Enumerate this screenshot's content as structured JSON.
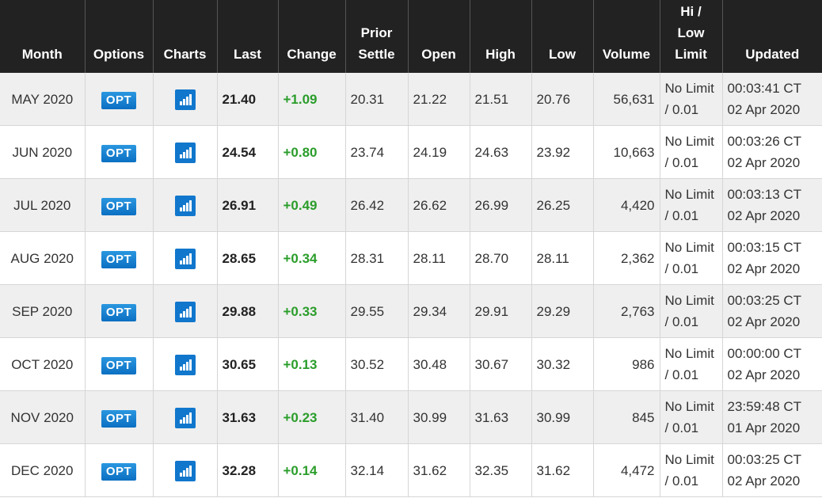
{
  "headers": {
    "month": "Month",
    "options": "Options",
    "charts": "Charts",
    "last": "Last",
    "change": "Change",
    "prior_settle_1": "Prior",
    "prior_settle_2": "Settle",
    "open": "Open",
    "high": "High",
    "low": "Low",
    "volume": "Volume",
    "hilo_1": "Hi /",
    "hilo_2": "Low",
    "hilo_3": "Limit",
    "updated": "Updated"
  },
  "option_label": "OPT",
  "icons": {
    "chart": "bar-chart-icon"
  },
  "colors": {
    "header_bg": "#222222",
    "change_up": "#2a9d2a",
    "opt_blue": "#1177cc"
  },
  "rows": [
    {
      "month": "MAY 2020",
      "last": "21.40",
      "change": "+1.09",
      "prior": "20.31",
      "open": "21.22",
      "high": "21.51",
      "low": "20.76",
      "volume": "56,631",
      "limit1": "No Limit",
      "limit2": "/ 0.01",
      "time": "00:03:41 CT",
      "date": "02 Apr 2020"
    },
    {
      "month": "JUN 2020",
      "last": "24.54",
      "change": "+0.80",
      "prior": "23.74",
      "open": "24.19",
      "high": "24.63",
      "low": "23.92",
      "volume": "10,663",
      "limit1": "No Limit",
      "limit2": "/ 0.01",
      "time": "00:03:26 CT",
      "date": "02 Apr 2020"
    },
    {
      "month": "JUL 2020",
      "last": "26.91",
      "change": "+0.49",
      "prior": "26.42",
      "open": "26.62",
      "high": "26.99",
      "low": "26.25",
      "volume": "4,420",
      "limit1": "No Limit",
      "limit2": "/ 0.01",
      "time": "00:03:13 CT",
      "date": "02 Apr 2020"
    },
    {
      "month": "AUG 2020",
      "last": "28.65",
      "change": "+0.34",
      "prior": "28.31",
      "open": "28.11",
      "high": "28.70",
      "low": "28.11",
      "volume": "2,362",
      "limit1": "No Limit",
      "limit2": "/ 0.01",
      "time": "00:03:15 CT",
      "date": "02 Apr 2020"
    },
    {
      "month": "SEP 2020",
      "last": "29.88",
      "change": "+0.33",
      "prior": "29.55",
      "open": "29.34",
      "high": "29.91",
      "low": "29.29",
      "volume": "2,763",
      "limit1": "No Limit",
      "limit2": "/ 0.01",
      "time": "00:03:25 CT",
      "date": "02 Apr 2020"
    },
    {
      "month": "OCT 2020",
      "last": "30.65",
      "change": "+0.13",
      "prior": "30.52",
      "open": "30.48",
      "high": "30.67",
      "low": "30.32",
      "volume": "986",
      "limit1": "No Limit",
      "limit2": "/ 0.01",
      "time": "00:00:00 CT",
      "date": "02 Apr 2020"
    },
    {
      "month": "NOV 2020",
      "last": "31.63",
      "change": "+0.23",
      "prior": "31.40",
      "open": "30.99",
      "high": "31.63",
      "low": "30.99",
      "volume": "845",
      "limit1": "No Limit",
      "limit2": "/ 0.01",
      "time": "23:59:48 CT",
      "date": "01 Apr 2020"
    },
    {
      "month": "DEC 2020",
      "last": "32.28",
      "change": "+0.14",
      "prior": "32.14",
      "open": "31.62",
      "high": "32.35",
      "low": "31.62",
      "volume": "4,472",
      "limit1": "No Limit",
      "limit2": "/ 0.01",
      "time": "00:03:25 CT",
      "date": "02 Apr 2020"
    }
  ]
}
